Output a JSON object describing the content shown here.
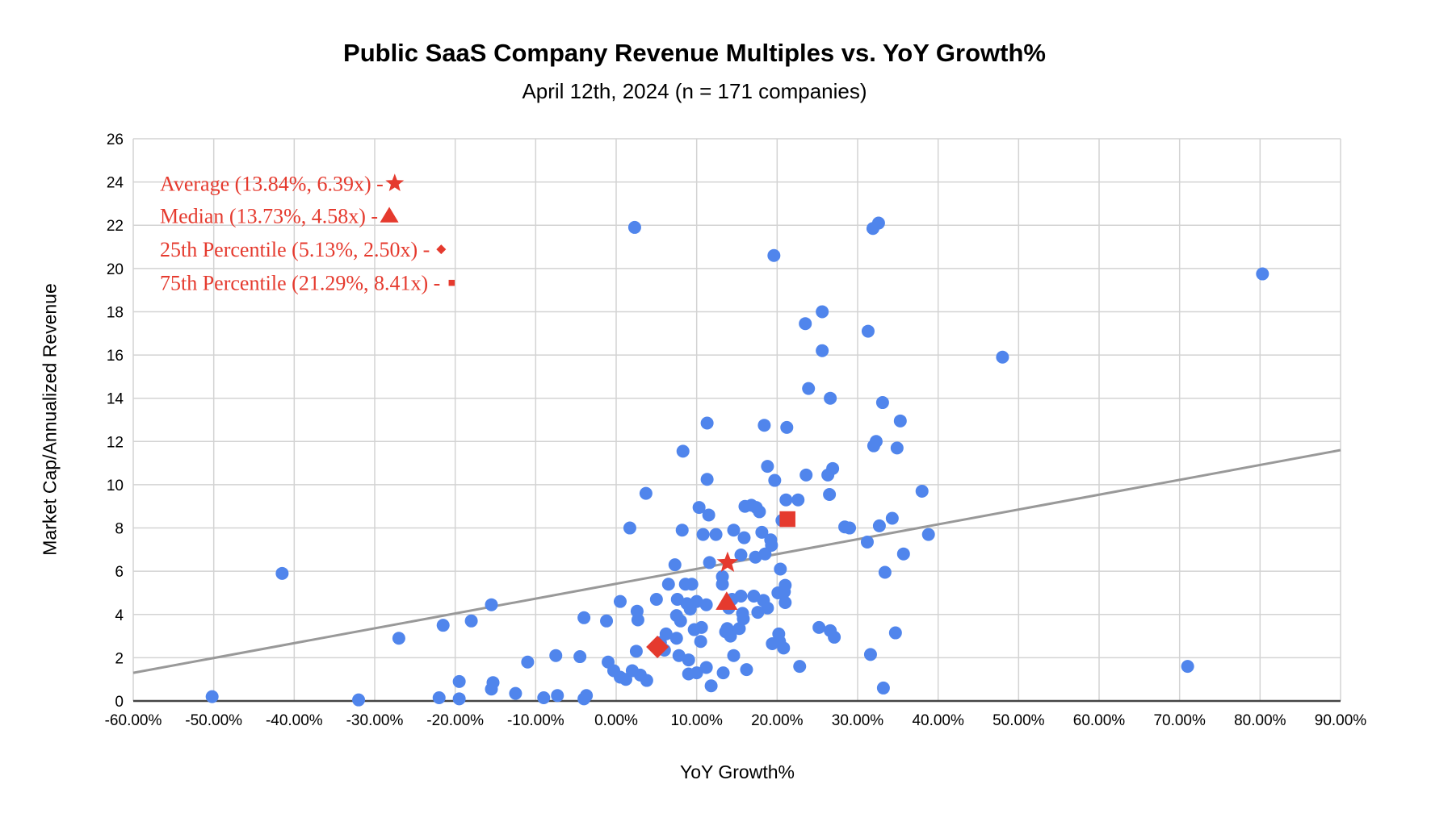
{
  "chart_data": {
    "type": "scatter",
    "title": "Public SaaS Company Revenue Multiples vs. YoY Growth%",
    "subtitle": "April 12th, 2024 (n = 171 companies)",
    "xlabel": "YoY Growth%",
    "ylabel": "Market Cap/Annualized Revenue",
    "xlim": [
      -60,
      90
    ],
    "ylim": [
      0,
      26
    ],
    "x_ticks": [
      "-60.00%",
      "-50.00%",
      "-40.00%",
      "-30.00%",
      "-20.00%",
      "-10.00%",
      "0.00%",
      "10.00%",
      "20.00%",
      "30.00%",
      "40.00%",
      "50.00%",
      "60.00%",
      "70.00%",
      "80.00%",
      "90.00%"
    ],
    "y_ticks": [
      "0",
      "2",
      "4",
      "6",
      "8",
      "10",
      "12",
      "14",
      "16",
      "18",
      "20",
      "22",
      "24",
      "26"
    ],
    "grid": true,
    "colors": {
      "points": "#5085ec",
      "highlight": "#e53a2e",
      "trendline": "#999999"
    },
    "trendline": {
      "x": [
        -60,
        90
      ],
      "y": [
        1.3,
        11.6
      ]
    },
    "series": [
      {
        "name": "Companies",
        "points": [
          [
            -50.2,
            0.2
          ],
          [
            -41.5,
            5.9
          ],
          [
            -32.0,
            0.05
          ],
          [
            -27.0,
            2.9
          ],
          [
            -22.0,
            0.15
          ],
          [
            -21.5,
            3.5
          ],
          [
            -19.5,
            0.9
          ],
          [
            -19.5,
            0.1
          ],
          [
            -18.0,
            3.7
          ],
          [
            -15.5,
            4.45
          ],
          [
            -15.5,
            0.55
          ],
          [
            -15.3,
            0.85
          ],
          [
            -12.5,
            0.35
          ],
          [
            -11.0,
            1.8
          ],
          [
            -9.0,
            0.15
          ],
          [
            -7.5,
            2.1
          ],
          [
            -7.3,
            0.25
          ],
          [
            -4.5,
            2.05
          ],
          [
            -4.0,
            3.85
          ],
          [
            -4.0,
            0.1
          ],
          [
            -3.7,
            0.25
          ],
          [
            -1.2,
            3.7
          ],
          [
            -1.0,
            1.8
          ],
          [
            -0.3,
            1.4
          ],
          [
            0.5,
            4.6
          ],
          [
            0.5,
            1.1
          ],
          [
            1.2,
            1.0
          ],
          [
            1.7,
            8.0
          ],
          [
            2.0,
            1.4
          ],
          [
            2.3,
            21.9
          ],
          [
            2.5,
            2.3
          ],
          [
            2.6,
            4.15
          ],
          [
            2.7,
            3.75
          ],
          [
            3.0,
            1.2
          ],
          [
            3.7,
            9.6
          ],
          [
            3.8,
            0.95
          ],
          [
            5.0,
            4.7
          ],
          [
            5.2,
            2.6
          ],
          [
            5.5,
            2.7
          ],
          [
            6.0,
            2.35
          ],
          [
            6.2,
            3.1
          ],
          [
            6.5,
            5.4
          ],
          [
            7.3,
            6.3
          ],
          [
            7.5,
            2.9
          ],
          [
            7.5,
            3.95
          ],
          [
            7.6,
            4.7
          ],
          [
            7.8,
            2.1
          ],
          [
            8.0,
            3.7
          ],
          [
            8.2,
            7.9
          ],
          [
            8.3,
            11.55
          ],
          [
            8.6,
            5.4
          ],
          [
            8.8,
            4.5
          ],
          [
            9.0,
            1.25
          ],
          [
            9.0,
            1.9
          ],
          [
            9.2,
            4.25
          ],
          [
            9.4,
            5.4
          ],
          [
            9.7,
            3.3
          ],
          [
            10.0,
            4.6
          ],
          [
            10.0,
            1.3
          ],
          [
            10.3,
            8.95
          ],
          [
            10.5,
            2.75
          ],
          [
            10.6,
            3.4
          ],
          [
            10.8,
            7.7
          ],
          [
            11.2,
            4.45
          ],
          [
            11.2,
            1.55
          ],
          [
            11.3,
            12.85
          ],
          [
            11.3,
            10.25
          ],
          [
            11.5,
            8.6
          ],
          [
            11.6,
            6.4
          ],
          [
            11.8,
            0.7
          ],
          [
            12.4,
            7.7
          ],
          [
            13.2,
            5.75
          ],
          [
            13.2,
            5.4
          ],
          [
            13.3,
            1.3
          ],
          [
            13.6,
            3.2
          ],
          [
            13.8,
            3.35
          ],
          [
            14.0,
            4.3
          ],
          [
            14.2,
            3.0
          ],
          [
            14.4,
            4.7
          ],
          [
            14.6,
            7.9
          ],
          [
            14.6,
            2.1
          ],
          [
            15.3,
            3.35
          ],
          [
            15.5,
            6.75
          ],
          [
            15.5,
            4.85
          ],
          [
            15.7,
            4.05
          ],
          [
            15.8,
            3.8
          ],
          [
            15.9,
            7.55
          ],
          [
            16.0,
            9.0
          ],
          [
            16.2,
            1.45
          ],
          [
            16.8,
            9.05
          ],
          [
            17.1,
            4.85
          ],
          [
            17.3,
            6.65
          ],
          [
            17.4,
            8.95
          ],
          [
            17.6,
            4.1
          ],
          [
            17.8,
            8.75
          ],
          [
            18.1,
            7.8
          ],
          [
            18.3,
            4.65
          ],
          [
            18.4,
            12.75
          ],
          [
            18.5,
            6.8
          ],
          [
            18.8,
            4.3
          ],
          [
            18.8,
            10.85
          ],
          [
            19.2,
            7.45
          ],
          [
            19.3,
            7.2
          ],
          [
            19.4,
            2.65
          ],
          [
            19.6,
            20.6
          ],
          [
            19.7,
            10.2
          ],
          [
            20.1,
            5.0
          ],
          [
            20.2,
            3.1
          ],
          [
            20.3,
            2.75
          ],
          [
            20.4,
            6.1
          ],
          [
            20.6,
            8.35
          ],
          [
            20.8,
            2.45
          ],
          [
            20.9,
            5.05
          ],
          [
            21.0,
            5.35
          ],
          [
            21.0,
            4.55
          ],
          [
            21.1,
            9.3
          ],
          [
            21.2,
            12.65
          ],
          [
            22.6,
            9.3
          ],
          [
            22.8,
            1.6
          ],
          [
            23.5,
            17.45
          ],
          [
            23.6,
            10.45
          ],
          [
            23.9,
            14.45
          ],
          [
            25.2,
            3.4
          ],
          [
            25.6,
            18.0
          ],
          [
            25.6,
            16.2
          ],
          [
            26.3,
            10.45
          ],
          [
            26.5,
            9.55
          ],
          [
            26.6,
            14.0
          ],
          [
            26.6,
            3.25
          ],
          [
            26.9,
            10.75
          ],
          [
            27.1,
            2.95
          ],
          [
            28.4,
            8.05
          ],
          [
            29.0,
            8.0
          ],
          [
            31.2,
            7.35
          ],
          [
            31.3,
            17.1
          ],
          [
            31.6,
            2.15
          ],
          [
            31.9,
            21.85
          ],
          [
            32.0,
            11.8
          ],
          [
            32.3,
            12.0
          ],
          [
            32.6,
            22.1
          ],
          [
            32.7,
            8.1
          ],
          [
            33.1,
            13.8
          ],
          [
            33.2,
            0.6
          ],
          [
            33.4,
            5.95
          ],
          [
            34.3,
            8.45
          ],
          [
            34.7,
            3.15
          ],
          [
            34.9,
            11.7
          ],
          [
            35.3,
            12.95
          ],
          [
            35.7,
            6.8
          ],
          [
            38.0,
            9.7
          ],
          [
            38.8,
            7.7
          ],
          [
            48.0,
            15.9
          ],
          [
            71.0,
            1.6
          ],
          [
            80.3,
            19.75
          ]
        ]
      },
      {
        "name": "Average (13.84%, 6.39x)",
        "marker": "star",
        "points": [
          [
            13.84,
            6.39
          ]
        ]
      },
      {
        "name": "Median (13.73%, 4.58x)",
        "marker": "triangle",
        "points": [
          [
            13.73,
            4.58
          ]
        ]
      },
      {
        "name": "25th Percentile (5.13%, 2.50x)",
        "marker": "diamond",
        "points": [
          [
            5.13,
            2.5
          ]
        ]
      },
      {
        "name": "75th Percentile (21.29%, 8.41x)",
        "marker": "square",
        "points": [
          [
            21.29,
            8.41
          ]
        ]
      }
    ],
    "annotations": [
      {
        "text": "Average (13.84%, 6.39x) - ",
        "marker": "star"
      },
      {
        "text": "Median (13.73%, 4.58x) - ",
        "marker": "triangle"
      },
      {
        "text": "25th Percentile (5.13%, 2.50x) - ",
        "marker": "diamond"
      },
      {
        "text": "75th Percentile (21.29%, 8.41x) - ",
        "marker": "square"
      }
    ]
  }
}
